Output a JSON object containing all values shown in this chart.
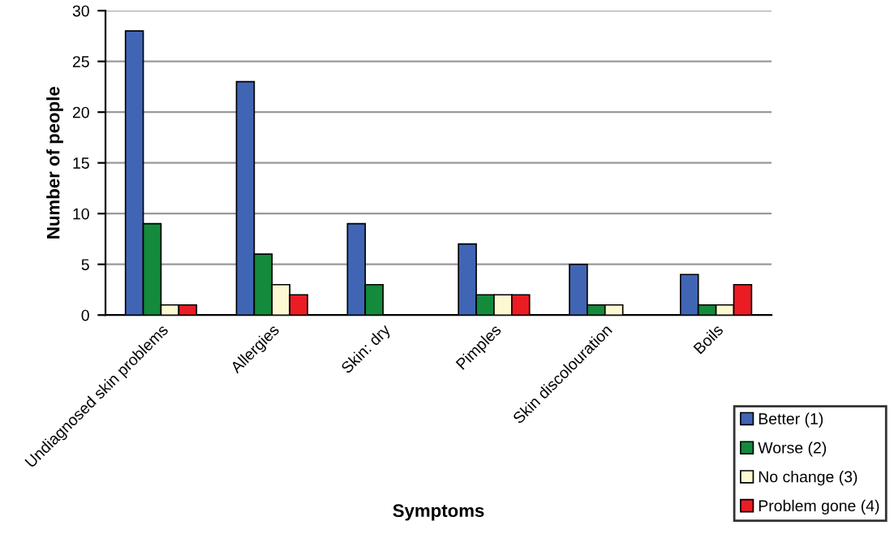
{
  "chart_data": {
    "type": "bar",
    "xlabel": "Symptoms",
    "ylabel": "Number of people",
    "categories": [
      "Undiagnosed skin problems",
      "Allergies",
      "Skin: dry",
      "Pimples",
      "Skin discolouration",
      "Boils"
    ],
    "series": [
      {
        "name": "Better (1)",
        "color": "#4065b4",
        "values": [
          28,
          23,
          9,
          7,
          5,
          4
        ]
      },
      {
        "name": "Worse (2)",
        "color": "#138a3c",
        "values": [
          9,
          6,
          3,
          2,
          1,
          1
        ]
      },
      {
        "name": "No change (3)",
        "color": "#fbf8d2",
        "values": [
          1,
          3,
          null,
          2,
          1,
          1
        ]
      },
      {
        "name": "Problem gone (4)",
        "color": "#ec1c24",
        "values": [
          1,
          2,
          null,
          2,
          null,
          3
        ]
      }
    ],
    "ylim": [
      0,
      30
    ],
    "yticks": [
      0,
      5,
      10,
      15,
      20,
      25,
      30
    ],
    "grid": "y",
    "legend": "bottom right"
  }
}
